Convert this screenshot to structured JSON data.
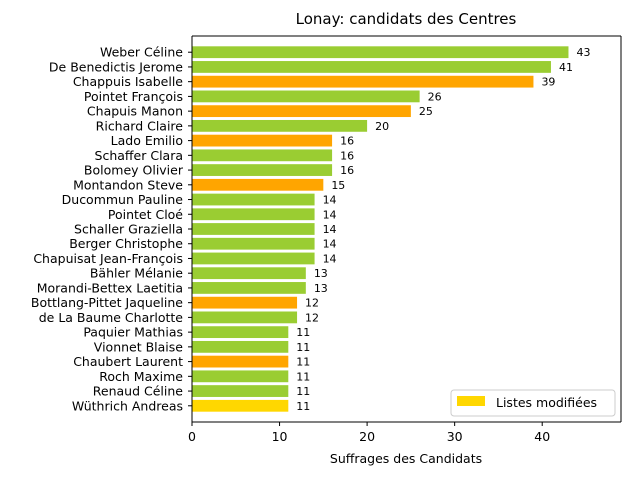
{
  "chart_data": {
    "type": "bar",
    "orientation": "horizontal",
    "title": "Lonay: candidats des Centres",
    "xlabel": "Suffrages des Candidats",
    "ylabel": "",
    "xlim": [
      0,
      49
    ],
    "x_ticks": [
      0,
      10,
      20,
      30,
      40
    ],
    "grid": false,
    "legend": {
      "placement": "lower-right",
      "entries": [
        {
          "label": "Listes modifiées",
          "color": "#ffd700"
        }
      ]
    },
    "colors": {
      "green": "#9acd32",
      "orange": "#ffa500",
      "gold": "#ffd700"
    },
    "bars": [
      {
        "category": "Weber Céline",
        "value": 43,
        "color": "#9acd32"
      },
      {
        "category": "De Benedictis Jerome",
        "value": 41,
        "color": "#9acd32"
      },
      {
        "category": "Chappuis Isabelle",
        "value": 39,
        "color": "#ffa500"
      },
      {
        "category": "Pointet François",
        "value": 26,
        "color": "#9acd32"
      },
      {
        "category": "Chapuis Manon",
        "value": 25,
        "color": "#ffa500"
      },
      {
        "category": "Richard Claire",
        "value": 20,
        "color": "#9acd32"
      },
      {
        "category": "Lado Emilio",
        "value": 16,
        "color": "#ffa500"
      },
      {
        "category": "Schaffer Clara",
        "value": 16,
        "color": "#9acd32"
      },
      {
        "category": "Bolomey Olivier",
        "value": 16,
        "color": "#9acd32"
      },
      {
        "category": "Montandon Steve",
        "value": 15,
        "color": "#ffa500"
      },
      {
        "category": "Ducommun Pauline",
        "value": 14,
        "color": "#9acd32"
      },
      {
        "category": "Pointet Cloé",
        "value": 14,
        "color": "#9acd32"
      },
      {
        "category": "Schaller Graziella",
        "value": 14,
        "color": "#9acd32"
      },
      {
        "category": "Berger Christophe",
        "value": 14,
        "color": "#9acd32"
      },
      {
        "category": "Chapuisat Jean-François",
        "value": 14,
        "color": "#9acd32"
      },
      {
        "category": "Bähler Mélanie",
        "value": 13,
        "color": "#9acd32"
      },
      {
        "category": "Morandi-Bettex Laetitia",
        "value": 13,
        "color": "#9acd32"
      },
      {
        "category": "Bottlang-Pittet Jaqueline",
        "value": 12,
        "color": "#ffa500"
      },
      {
        "category": "de La Baume Charlotte",
        "value": 12,
        "color": "#9acd32"
      },
      {
        "category": "Paquier Mathias",
        "value": 11,
        "color": "#9acd32"
      },
      {
        "category": "Vionnet Blaise",
        "value": 11,
        "color": "#9acd32"
      },
      {
        "category": "Chaubert Laurent",
        "value": 11,
        "color": "#ffa500"
      },
      {
        "category": "Roch Maxime",
        "value": 11,
        "color": "#9acd32"
      },
      {
        "category": "Renaud Céline",
        "value": 11,
        "color": "#9acd32"
      },
      {
        "category": "Wüthrich Andreas",
        "value": 11,
        "color": "#ffd700"
      }
    ]
  }
}
